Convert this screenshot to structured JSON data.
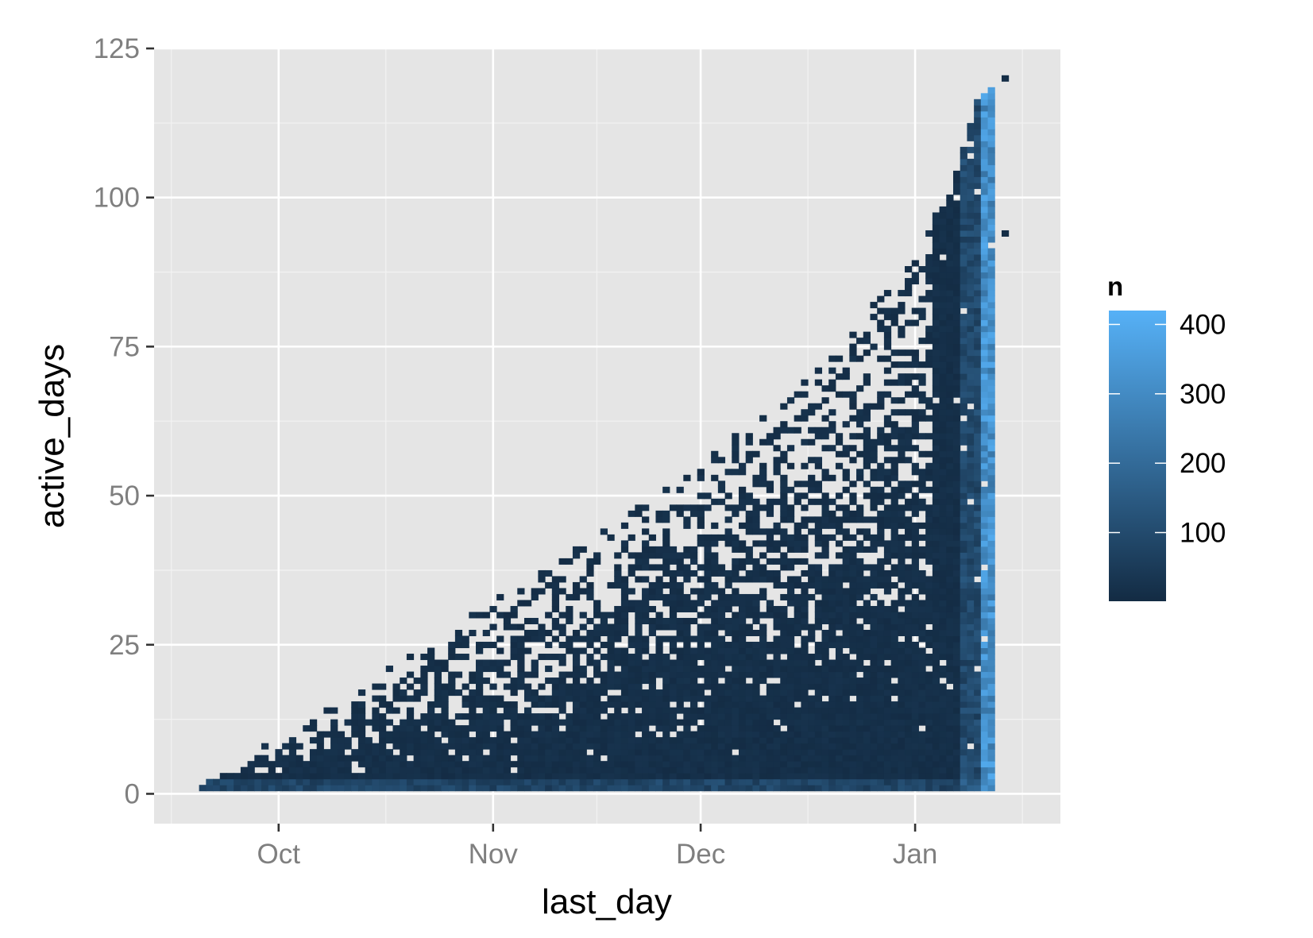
{
  "chart_data": {
    "type": "heatmap",
    "xlabel": "last_day",
    "ylabel": "active_days",
    "x_ticks": [
      {
        "label": "Oct",
        "date": "2013-10-01"
      },
      {
        "label": "Nov",
        "date": "2013-11-01"
      },
      {
        "label": "Dec",
        "date": "2013-12-01"
      },
      {
        "label": "Jan",
        "date": "2014-01-01"
      }
    ],
    "y_ticks": [
      0,
      25,
      50,
      75,
      100,
      125
    ],
    "xlim": [
      "2013-09-13",
      "2014-01-22"
    ],
    "ylim": [
      -5,
      125
    ],
    "grid": true,
    "legend": {
      "title": "n",
      "position": "right",
      "ticks": [
        100,
        200,
        300,
        400
      ],
      "range": [
        1,
        420
      ],
      "color_low": "#132b43",
      "color_high": "#56b1f7"
    },
    "panel_background": "#e5e5e5",
    "data_extent": {
      "first_day": "2013-09-20",
      "last_day_bulk": "2014-01-12",
      "outlier_points": [
        {
          "last_day": "2014-01-14",
          "active_days": 120
        },
        {
          "last_day": "2014-01-14",
          "active_days": 94
        }
      ],
      "upper_edge": [
        {
          "last_day": "2013-09-20",
          "active_days": 1
        },
        {
          "last_day": "2013-10-01",
          "active_days": 9
        },
        {
          "last_day": "2013-10-15",
          "active_days": 19
        },
        {
          "last_day": "2013-11-01",
          "active_days": 32
        },
        {
          "last_day": "2013-11-15",
          "active_days": 42
        },
        {
          "last_day": "2013-12-01",
          "active_days": 55
        },
        {
          "last_day": "2013-12-15",
          "active_days": 68
        },
        {
          "last_day": "2013-12-25",
          "active_days": 80
        },
        {
          "last_day": "2014-01-01",
          "active_days": 92
        },
        {
          "last_day": "2014-01-06",
          "active_days": 100
        },
        {
          "last_day": "2014-01-10",
          "active_days": 116
        },
        {
          "last_day": "2014-01-12",
          "active_days": 118
        }
      ]
    }
  }
}
